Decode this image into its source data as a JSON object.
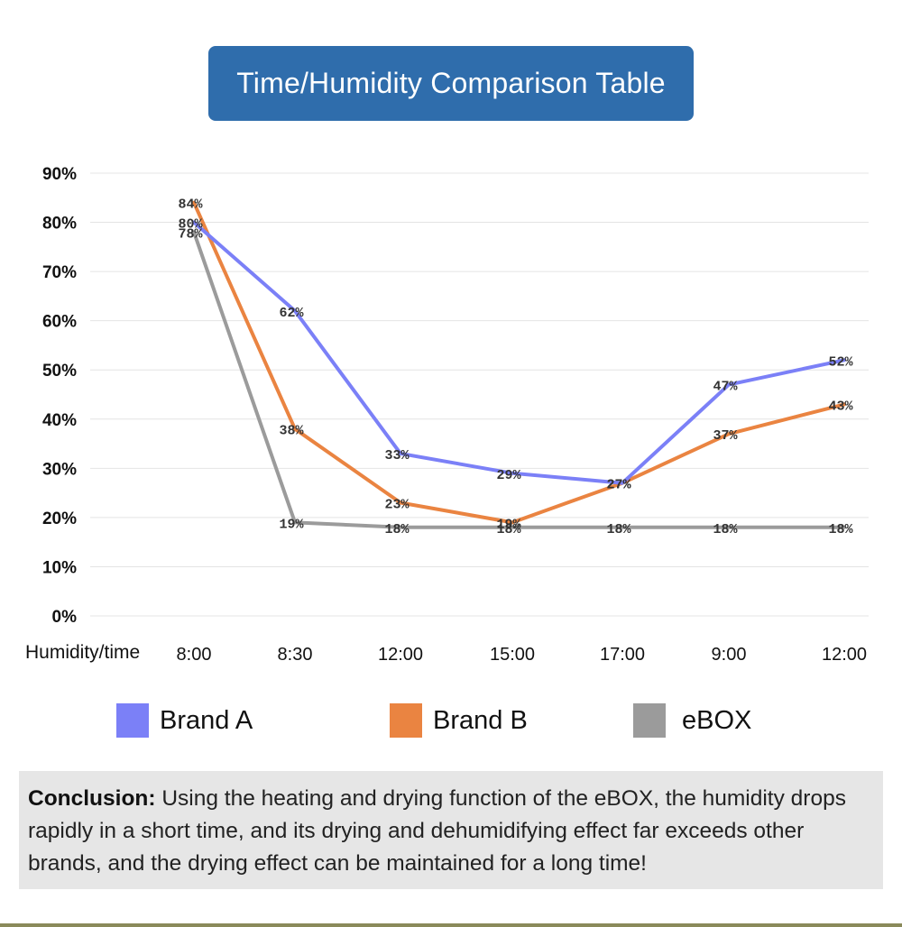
{
  "title": "Time/Humidity Comparison Table",
  "colors": {
    "title_bg": "#2f6dac",
    "brand_a": "#7b80f7",
    "brand_b": "#ea8441",
    "ebox": "#9b9b9b"
  },
  "chart_data": {
    "type": "line",
    "title": "Time/Humidity Comparison Table",
    "xlabel": "Humidity/time",
    "ylabel": "",
    "categories": [
      "8:00",
      "8:30",
      "12:00",
      "15:00",
      "17:00",
      "9:00",
      "12:00"
    ],
    "ylim": [
      0,
      90
    ],
    "yticks": [
      "0%",
      "10%",
      "20%",
      "30%",
      "40%",
      "50%",
      "60%",
      "70%",
      "80%",
      "90%"
    ],
    "grid": true,
    "legend_position": "bottom",
    "series": [
      {
        "name": "Brand A",
        "color": "#7b80f7",
        "values": [
          80,
          62,
          33,
          29,
          27,
          47,
          52
        ],
        "labels": [
          "80%",
          "62%",
          "33%",
          "29%",
          "27%",
          "47%",
          "52%"
        ]
      },
      {
        "name": "Brand B",
        "color": "#ea8441",
        "values": [
          84,
          38,
          23,
          19,
          27,
          37,
          43
        ],
        "labels": [
          "84%",
          "38%",
          "23%",
          "19%",
          "27%",
          "37%",
          "43%"
        ]
      },
      {
        "name": "eBOX",
        "color": "#9b9b9b",
        "values": [
          78,
          19,
          18,
          18,
          18,
          18,
          18
        ],
        "labels": [
          "78%",
          "19%",
          "18%",
          "18%",
          "18%",
          "18%",
          "18%"
        ]
      }
    ]
  },
  "legend": [
    {
      "label": "Brand A",
      "color": "#7b80f7"
    },
    {
      "label": "Brand B",
      "color": "#ea8441"
    },
    {
      "label": "eBOX",
      "color": "#9b9b9b"
    }
  ],
  "conclusion": {
    "label": "Conclusion:",
    "text": " Using the heating and drying function of the eBOX, the humidity drops rapidly in a short time, and its drying and dehumidifying effect far exceeds other brands, and the drying effect can be maintained for a long time!"
  }
}
